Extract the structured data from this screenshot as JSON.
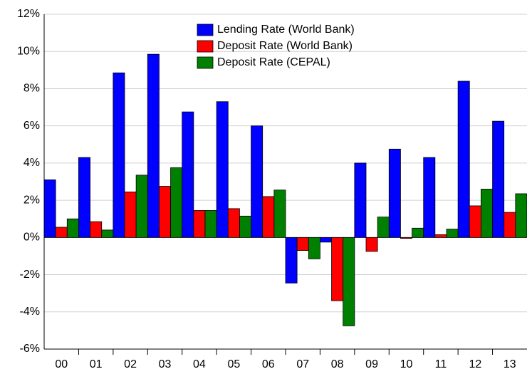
{
  "chart_data": {
    "type": "bar",
    "categories": [
      "00",
      "01",
      "02",
      "03",
      "04",
      "05",
      "06",
      "07",
      "08",
      "09",
      "10",
      "11",
      "12",
      "13"
    ],
    "series": [
      {
        "name": "Lending Rate (World Bank)",
        "color": "#0000ff",
        "values": [
          3.1,
          4.3,
          8.85,
          9.85,
          6.75,
          7.3,
          6.0,
          -2.45,
          -0.25,
          4.0,
          4.75,
          4.3,
          8.4,
          6.25
        ]
      },
      {
        "name": "Deposit Rate (World Bank)",
        "color": "#ff0000",
        "values": [
          0.55,
          0.85,
          2.45,
          2.75,
          1.45,
          1.55,
          2.2,
          -0.7,
          -3.4,
          -0.75,
          -0.05,
          0.15,
          1.7,
          1.35
        ]
      },
      {
        "name": "Deposit Rate (CEPAL)",
        "color": "#008000",
        "values": [
          1.0,
          0.4,
          3.35,
          3.75,
          1.45,
          1.15,
          2.55,
          -1.15,
          -4.75,
          1.1,
          0.5,
          0.45,
          2.6,
          2.35
        ]
      }
    ],
    "ylim": [
      -6,
      12
    ],
    "yticks": [
      {
        "value": -6,
        "label": "-6%"
      },
      {
        "value": -4,
        "label": "-4%"
      },
      {
        "value": -2,
        "label": "-2%"
      },
      {
        "value": 0,
        "label": "0%"
      },
      {
        "value": 2,
        "label": "2%"
      },
      {
        "value": 4,
        "label": "4%"
      },
      {
        "value": 6,
        "label": "6%"
      },
      {
        "value": 8,
        "label": "8%"
      },
      {
        "value": 10,
        "label": "10%"
      },
      {
        "value": 12,
        "label": "12%"
      }
    ],
    "grid": true
  }
}
